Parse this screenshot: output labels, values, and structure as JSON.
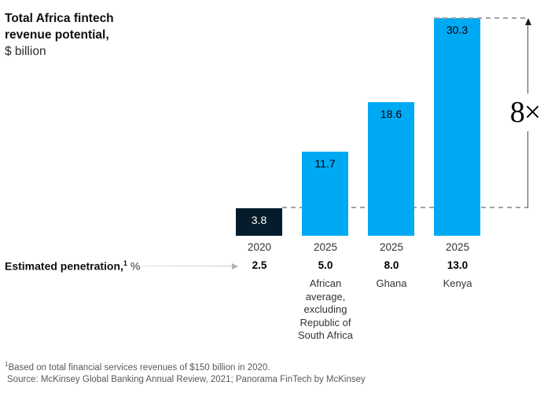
{
  "title": {
    "line1": "Total Africa fintech",
    "line2": "revenue potential,",
    "unit": "$ billion"
  },
  "annotation": {
    "multiplier": "8×"
  },
  "row_label": {
    "text": "Estimated penetration,",
    "sup": "1",
    "unit": "%"
  },
  "footnote": {
    "sup": "1",
    "line1": "Based on total financial services revenues of $150 billion in 2020.",
    "line2": "Source: McKinsey Global Banking Annual Review, 2021; Panorama FinTech by McKinsey"
  },
  "colors": {
    "bar_blue": "#00a9f4",
    "bar_dark": "#051c2c",
    "dash_gray": "#a3a3a3",
    "footnote_gray": "#595959"
  },
  "chart_data": {
    "type": "bar",
    "title": "Total Africa fintech revenue potential",
    "ylabel": "$ billion",
    "ylim": [
      0,
      30.3
    ],
    "grid": false,
    "legend": false,
    "categories": [
      "2020",
      "2025 African average, excluding Republic of South Africa",
      "2025 Ghana",
      "2025 Kenya"
    ],
    "values": [
      3.8,
      11.7,
      18.6,
      30.3
    ],
    "annotation": "8× growth indicated by dashed lines from 3.8 (2020) to 30.3 (2025 Kenya)",
    "bars": [
      {
        "value": 3.8,
        "label": "3.8",
        "year": "2020",
        "penetration": "2.5",
        "region": "",
        "color": "#051c2c",
        "value_text_color": "#ffffff"
      },
      {
        "value": 11.7,
        "label": "11.7",
        "year": "2025",
        "penetration": "5.0",
        "region": "African\naverage,\nexcluding\nRepublic of\nSouth Africa",
        "color": "#00a9f4",
        "value_text_color": "#000000"
      },
      {
        "value": 18.6,
        "label": "18.6",
        "year": "2025",
        "penetration": "8.0",
        "region": "Ghana",
        "color": "#00a9f4",
        "value_text_color": "#000000"
      },
      {
        "value": 30.3,
        "label": "30.3",
        "year": "2025",
        "penetration": "13.0",
        "region": "Kenya",
        "color": "#00a9f4",
        "value_text_color": "#000000"
      }
    ]
  }
}
